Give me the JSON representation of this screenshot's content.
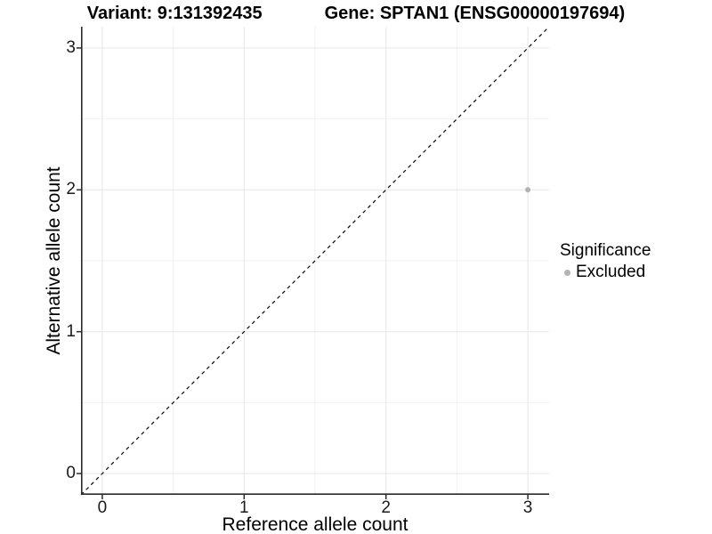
{
  "header": {
    "variant_title": "Variant: 9:131392435",
    "gene_title": "Gene: SPTAN1 (ENSG00000197694)"
  },
  "axes": {
    "x": {
      "label": "Reference allele count",
      "ticks": [
        "0",
        "1",
        "2",
        "3"
      ]
    },
    "y": {
      "label": "Alternative allele count",
      "ticks": [
        "0",
        "1",
        "2",
        "3"
      ]
    }
  },
  "legend": {
    "title": "Significance",
    "items": [
      {
        "label": "Excluded",
        "color": "#b3b3b3",
        "marker": "point-icon"
      }
    ]
  },
  "colors": {
    "background": "#ffffff",
    "point": "#b3b3b3",
    "grid_major": "#e6e6e6",
    "grid_minor": "#f2f2f2",
    "axis_line": "#2b2b2b",
    "tick_mark": "#2b2b2b",
    "dashed_line": "#000000",
    "text": "#000000"
  },
  "chart_data": {
    "type": "scatter",
    "title": "Variant: 9:131392435    Gene: SPTAN1 (ENSG00000197694)",
    "xlabel": "Reference allele count",
    "ylabel": "Alternative allele count",
    "xlim": [
      -0.15,
      3.15
    ],
    "ylim": [
      -0.15,
      3.15
    ],
    "x_tick_values": [
      0,
      1,
      2,
      3
    ],
    "y_tick_values": [
      0,
      1,
      2,
      3
    ],
    "grid": {
      "major": [
        0,
        1,
        2,
        3
      ],
      "minor": [
        0.5,
        1.5,
        2.5
      ]
    },
    "legend_position": "right",
    "series": [
      {
        "name": "Excluded",
        "color": "#b3b3b3",
        "marker_radius": 3,
        "points": [
          {
            "x": 3,
            "y": 2
          }
        ]
      }
    ],
    "reference_line": {
      "type": "identity",
      "from": [
        -0.15,
        -0.15
      ],
      "to": [
        3.15,
        3.15
      ],
      "style": "dashed",
      "color": "#000000"
    }
  }
}
